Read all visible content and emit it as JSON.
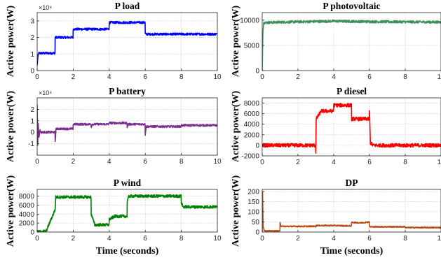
{
  "chart_data": [
    {
      "type": "line",
      "title": "P load",
      "xlabel": "",
      "ylabel": "",
      "xlim": [
        0,
        10
      ],
      "ylim": [
        0,
        35000
      ],
      "xticks": [
        "0",
        "2",
        "4",
        "6",
        "8",
        "10"
      ],
      "yticks": [
        "0",
        "1",
        "2",
        "3"
      ],
      "y_multiplier": "×10⁴",
      "grid": true,
      "series": [
        {
          "color": "#0000ff",
          "noise": 700,
          "x": [
            0,
            0.05,
            0.08,
            0.99,
            1.0,
            1.99,
            2.0,
            3.99,
            4.0,
            5.99,
            6.0,
            10
          ],
          "y": [
            3000,
            9000,
            10500,
            10500,
            20000,
            20000,
            25000,
            25000,
            29000,
            29000,
            22000,
            22000
          ]
        }
      ]
    },
    {
      "type": "line",
      "title": "P photovoltaic",
      "xlabel": "",
      "ylabel": "",
      "xlim": [
        0,
        10
      ],
      "ylim": [
        0,
        11500
      ],
      "xticks": [
        "0",
        "2",
        "4",
        "6",
        "8",
        "10"
      ],
      "yticks": [
        "0",
        "5000",
        "10000"
      ],
      "grid": true,
      "series": [
        {
          "color": "#3f8f5f",
          "noise": 250,
          "x": [
            0,
            0.04,
            0.08,
            1.0,
            4.0,
            6.0,
            10
          ],
          "y": [
            0,
            8000,
            9500,
            9600,
            9800,
            9700,
            9600
          ]
        }
      ]
    },
    {
      "type": "line",
      "title": "P battery",
      "xlabel": "",
      "ylabel": "",
      "xlim": [
        0,
        10
      ],
      "ylim": [
        -20000,
        30000
      ],
      "xticks": [
        "0",
        "2",
        "4",
        "6",
        "8",
        "10"
      ],
      "yticks": [
        "-1",
        "0",
        "1",
        "2"
      ],
      "y_multiplier": "×10⁴",
      "grid": true,
      "series": [
        {
          "color": "#7b2e8e",
          "noise": 900,
          "x": [
            0,
            0.03,
            0.06,
            0.1,
            0.15,
            0.2,
            0.99,
            1.0,
            1.05,
            1.99,
            2.0,
            2.99,
            3.0,
            3.05,
            3.99,
            4.0,
            4.05,
            4.99,
            5.0,
            5.05,
            5.99,
            6.0,
            6.05,
            7.99,
            8.0,
            10
          ],
          "y": [
            25000,
            -12000,
            8000,
            -5000,
            2000,
            0,
            0,
            -8000,
            3000,
            3000,
            7000,
            7000,
            4000,
            7000,
            7000,
            9000,
            8000,
            8000,
            4000,
            7000,
            7000,
            -2000,
            5000,
            5000,
            6000,
            6000
          ]
        }
      ]
    },
    {
      "type": "line",
      "title": "P diesel",
      "xlabel": "",
      "ylabel": "",
      "xlim": [
        0,
        10
      ],
      "ylim": [
        -2000,
        9000
      ],
      "xticks": [
        "0",
        "2",
        "4",
        "6",
        "8",
        "10"
      ],
      "yticks": [
        "-2000",
        "0",
        "2000",
        "4000",
        "6000",
        "8000"
      ],
      "grid": true,
      "series": [
        {
          "color": "#ff0000",
          "noise": 350,
          "x": [
            0,
            2.98,
            3.0,
            3.02,
            3.3,
            3.99,
            4.0,
            4.99,
            5.0,
            5.99,
            6.0,
            6.05,
            6.2,
            10
          ],
          "y": [
            0,
            0,
            -1200,
            5000,
            6500,
            6500,
            7600,
            7600,
            5000,
            5000,
            6500,
            500,
            0,
            0
          ]
        }
      ]
    },
    {
      "type": "line",
      "title": "P wind",
      "xlabel": "Time (seconds)",
      "ylabel": "",
      "xlim": [
        0,
        10
      ],
      "ylim": [
        0,
        9500
      ],
      "xticks": [
        "0",
        "2",
        "4",
        "6",
        "8",
        "10"
      ],
      "yticks": [
        "0",
        "2000",
        "4000",
        "6000",
        "8000"
      ],
      "grid": true,
      "series": [
        {
          "color": "#008000",
          "noise": 320,
          "x": [
            0,
            0.5,
            1.0,
            1.03,
            2.99,
            3.0,
            3.2,
            3.99,
            4.0,
            4.3,
            4.99,
            5.0,
            5.1,
            7.99,
            8.0,
            8.1,
            10
          ],
          "y": [
            0,
            200,
            5000,
            7800,
            7800,
            4000,
            1600,
            1600,
            2800,
            3500,
            3500,
            7000,
            8000,
            8000,
            6500,
            5600,
            5600
          ]
        }
      ]
    },
    {
      "type": "line",
      "title": "DP",
      "xlabel": "Time (seconds)",
      "ylabel": "",
      "xlim": [
        0,
        10
      ],
      "ylim": [
        0,
        210
      ],
      "xticks": [
        "0",
        "2",
        "4",
        "6",
        "8",
        "10"
      ],
      "yticks": [
        "0",
        "50",
        "100",
        "150",
        "200"
      ],
      "grid": true,
      "series": [
        {
          "color": "#b84a10",
          "noise": 3,
          "x": [
            0,
            0.02,
            0.05,
            0.1,
            0.2,
            0.99,
            1.0,
            1.05,
            1.2,
            2.99,
            3.0,
            4.0,
            4.99,
            5.0,
            5.5,
            5.99,
            6.0,
            7.99,
            8.0,
            10
          ],
          "y": [
            0,
            200,
            30,
            10,
            5,
            5,
            45,
            30,
            28,
            28,
            32,
            32,
            30,
            48,
            45,
            50,
            26,
            26,
            22,
            22
          ]
        }
      ]
    }
  ],
  "shared_ylabel": "Active power(W)"
}
